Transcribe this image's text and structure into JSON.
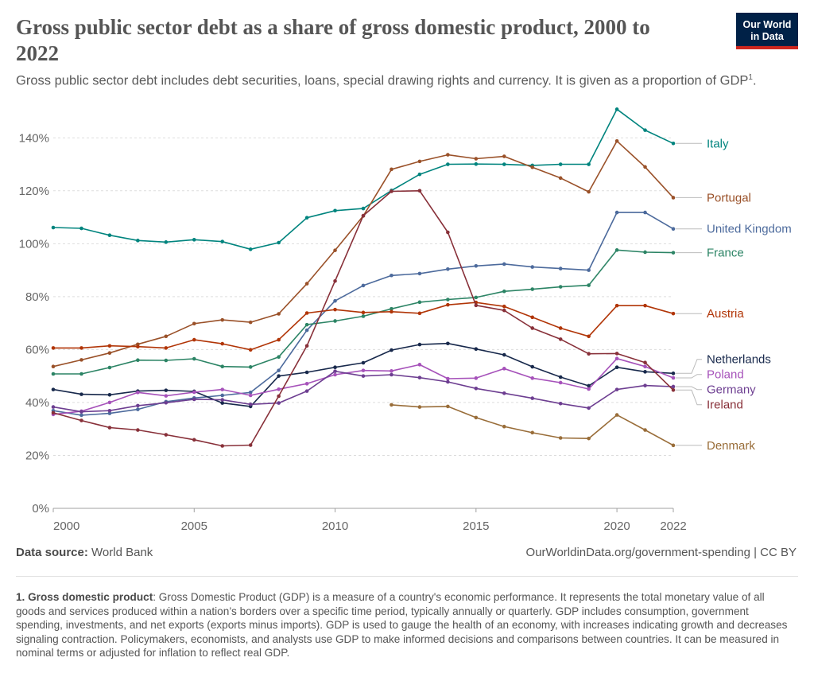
{
  "header": {
    "title": "Gross public sector debt as a share of gross domestic product, 2000 to 2022",
    "subtitle": "Gross public sector debt includes debt securities, loans, special drawing rights and currency. It is given as a proportion of GDP",
    "subtitle_footnote_ref": "1",
    "subtitle_end": "."
  },
  "logo": {
    "line1": "Our World",
    "line2": "in Data"
  },
  "footer": {
    "source_label": "Data source:",
    "source_value": "World Bank",
    "link": "OurWorldinData.org/government-spending | CC BY",
    "footnote_term": "1. Gross domestic product",
    "footnote_text": ": Gross Domestic Product (GDP) is a measure of a country's economic performance. It represents the total monetary value of all goods and services produced within a nation’s borders over a specific time period, typically annually or quarterly. GDP includes consumption, government spending, investments, and net exports (exports minus imports). GDP is used to gauge the health of an economy, with increases indicating growth and decreases signaling contraction. Policymakers, economists, and analysts use GDP to make informed decisions and comparisons between countries. It can be measured in nominal terms or adjusted for inflation to reflect real GDP."
  },
  "chart_data": {
    "type": "line",
    "title": "Gross public sector debt as a share of gross domestic product, 2000 to 2022",
    "xlabel": "",
    "ylabel": "",
    "x": [
      2000,
      2001,
      2002,
      2003,
      2004,
      2005,
      2006,
      2007,
      2008,
      2009,
      2010,
      2011,
      2012,
      2013,
      2014,
      2015,
      2016,
      2017,
      2018,
      2019,
      2020,
      2021,
      2022
    ],
    "xlim": [
      2000,
      2022
    ],
    "ylim": [
      0,
      150
    ],
    "x_ticks": [
      "2000",
      "2005",
      "2010",
      "2015",
      "2020",
      "2022"
    ],
    "x_tick_values": [
      2000,
      2005,
      2010,
      2015,
      2020,
      2022
    ],
    "y_ticks": [
      "0%",
      "20%",
      "40%",
      "60%",
      "80%",
      "100%",
      "120%",
      "140%"
    ],
    "y_tick_values": [
      0,
      20,
      40,
      60,
      80,
      100,
      120,
      140
    ],
    "grid": "horizontal dashed",
    "legend": "right (line-end labels)",
    "series": [
      {
        "name": "Italy",
        "color": "#00847e",
        "values": [
          106.1,
          105.8,
          103.2,
          101.2,
          100.6,
          101.5,
          100.8,
          97.9,
          100.4,
          109.8,
          112.5,
          113.3,
          120.1,
          126.2,
          130.0,
          130.1,
          130.0,
          129.6,
          130.0,
          130.0,
          150.8,
          142.9,
          137.9
        ]
      },
      {
        "name": "Portugal",
        "color": "#9a5129",
        "values": [
          53.6,
          56.1,
          58.7,
          62.0,
          65.0,
          69.8,
          71.2,
          70.3,
          73.5,
          84.9,
          97.5,
          110.5,
          128.1,
          131.1,
          133.6,
          132.1,
          133.0,
          128.9,
          124.8,
          119.6,
          138.8,
          129.0,
          117.4
        ]
      },
      {
        "name": "United Kingdom",
        "color": "#4c6a9c",
        "values": [
          36.9,
          35.2,
          35.9,
          37.4,
          40.3,
          41.7,
          42.7,
          43.8,
          52.1,
          67.3,
          78.4,
          84.2,
          88.0,
          88.7,
          90.4,
          91.6,
          92.3,
          91.2,
          90.6,
          90.0,
          111.8,
          111.8,
          105.6
        ]
      },
      {
        "name": "France",
        "color": "#2c8465",
        "values": [
          50.8,
          50.8,
          53.2,
          56.0,
          55.9,
          56.5,
          53.6,
          53.4,
          57.2,
          69.4,
          70.8,
          72.6,
          75.4,
          77.9,
          78.9,
          79.7,
          82.0,
          82.8,
          83.7,
          84.3,
          97.6,
          96.8,
          96.6
        ]
      },
      {
        "name": "Austria",
        "color": "#b13507",
        "values": [
          60.6,
          60.6,
          61.4,
          61.1,
          60.6,
          63.7,
          62.2,
          59.9,
          63.7,
          73.8,
          75.1,
          74.0,
          74.3,
          73.7,
          76.9,
          77.8,
          76.3,
          72.2,
          68.1,
          65.0,
          76.6,
          76.6,
          73.6
        ]
      },
      {
        "name": "Netherlands",
        "color": "#18294c",
        "values": [
          44.9,
          43.1,
          42.9,
          44.3,
          44.6,
          44.2,
          39.8,
          38.5,
          50.0,
          51.4,
          53.3,
          55.0,
          59.8,
          61.9,
          62.3,
          60.2,
          58.0,
          53.5,
          49.6,
          46.3,
          53.3,
          51.6,
          51.0
        ]
      },
      {
        "name": "Poland",
        "color": "#a652ba",
        "values": [
          35.5,
          36.7,
          40.0,
          43.8,
          42.5,
          43.9,
          44.9,
          42.7,
          45.0,
          47.1,
          50.5,
          52.1,
          51.9,
          54.3,
          49.0,
          49.2,
          52.8,
          49.2,
          47.5,
          45.1,
          56.6,
          53.6,
          49.3
        ]
      },
      {
        "name": "Germany",
        "color": "#6d3e91",
        "values": [
          38.3,
          36.5,
          36.9,
          38.8,
          39.9,
          41.2,
          41.0,
          39.3,
          39.8,
          44.3,
          51.8,
          50.0,
          50.5,
          49.4,
          47.8,
          45.3,
          43.5,
          41.6,
          39.6,
          37.9,
          44.9,
          46.4,
          46.0
        ]
      },
      {
        "name": "Ireland",
        "color": "#883039",
        "values": [
          36.1,
          33.2,
          30.5,
          29.6,
          27.8,
          25.9,
          23.6,
          23.9,
          42.4,
          61.4,
          85.9,
          110.6,
          119.8,
          120.0,
          104.3,
          76.7,
          74.8,
          68.1,
          63.9,
          58.4,
          58.5,
          55.1,
          44.7
        ]
      },
      {
        "name": "Denmark",
        "color": "#996d39",
        "values": [
          null,
          null,
          null,
          null,
          null,
          null,
          null,
          null,
          null,
          null,
          null,
          null,
          39.1,
          38.3,
          38.5,
          34.3,
          30.9,
          28.6,
          26.6,
          26.4,
          35.3,
          29.6,
          23.8
        ]
      }
    ]
  }
}
